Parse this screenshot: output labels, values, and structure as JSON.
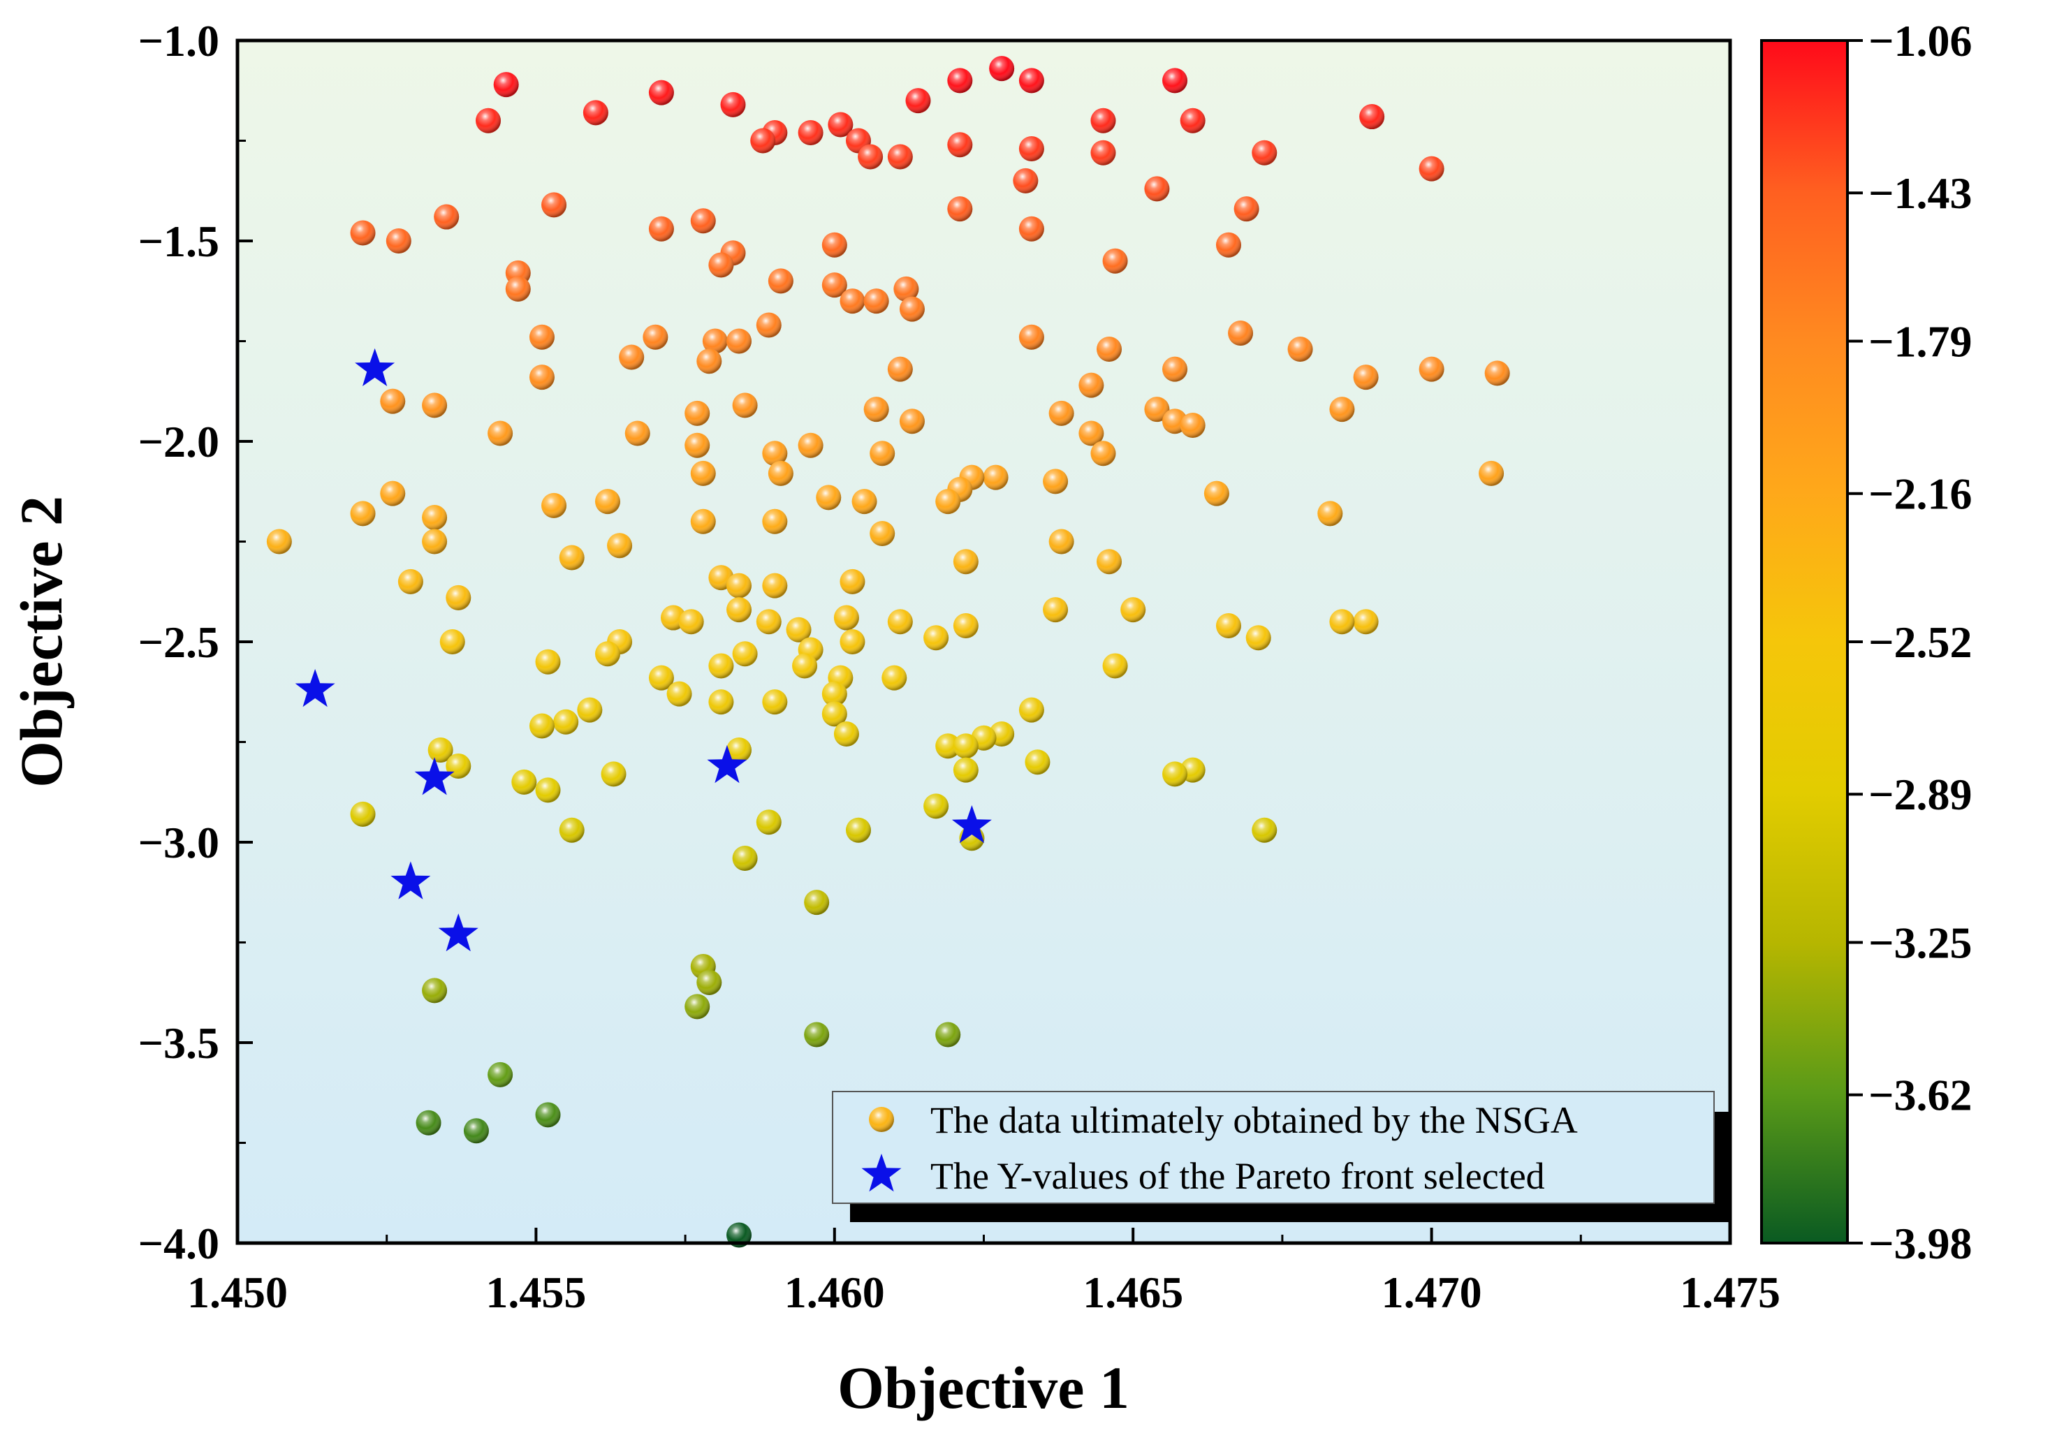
{
  "chart_data": {
    "type": "scatter",
    "title": "",
    "xlabel": "Objective 1",
    "ylabel": "Objective 2",
    "xlim": [
      1.45,
      1.475
    ],
    "ylim": [
      -4.0,
      -1.0
    ],
    "x_ticks": [
      "1.450",
      "1.455",
      "1.460",
      "1.465",
      "1.470",
      "1.475"
    ],
    "y_ticks": [
      "−1.0",
      "−1.5",
      "−2.0",
      "−2.5",
      "−3.0",
      "−3.5",
      "−4.0"
    ],
    "x_tick_values": [
      1.45,
      1.455,
      1.46,
      1.465,
      1.47,
      1.475
    ],
    "y_tick_values": [
      -1.0,
      -1.5,
      -2.0,
      -2.5,
      -3.0,
      -3.5,
      -4.0
    ],
    "colorbar": {
      "range": [
        -3.98,
        -1.06
      ],
      "ticks": [
        "−1.06",
        "−1.43",
        "−1.79",
        "−2.16",
        "−2.52",
        "−2.89",
        "−3.25",
        "−3.62",
        "−3.98"
      ],
      "tick_values": [
        -1.06,
        -1.43,
        -1.79,
        -2.16,
        -2.52,
        -2.89,
        -3.25,
        -3.62,
        -3.98
      ],
      "colors": [
        "#ff0a1a",
        "#ff5f20",
        "#ff8a20",
        "#ffa81a",
        "#f5c60a",
        "#e2cc00",
        "#b6b600",
        "#5a9a18",
        "#0a5a22"
      ]
    },
    "background_gradient": [
      "#eef7e8",
      "#d4ebf7"
    ],
    "legend": {
      "position": "bottom-right",
      "entries": [
        "The data ultimately obtained by the NSGA",
        "The Y-values of the Pareto front selected"
      ]
    },
    "series": [
      {
        "name": "The data ultimately obtained by the NSGA",
        "marker": "sphere",
        "color_by": "y",
        "points": [
          [
            1.4628,
            -1.07
          ],
          [
            1.4633,
            -1.1
          ],
          [
            1.4621,
            -1.1
          ],
          [
            1.4545,
            -1.11
          ],
          [
            1.4571,
            -1.13
          ],
          [
            1.4614,
            -1.15
          ],
          [
            1.4583,
            -1.16
          ],
          [
            1.456,
            -1.18
          ],
          [
            1.4657,
            -1.1
          ],
          [
            1.4542,
            -1.2
          ],
          [
            1.466,
            -1.2
          ],
          [
            1.469,
            -1.19
          ],
          [
            1.4601,
            -1.21
          ],
          [
            1.4645,
            -1.2
          ],
          [
            1.4596,
            -1.23
          ],
          [
            1.459,
            -1.23
          ],
          [
            1.4604,
            -1.25
          ],
          [
            1.4588,
            -1.25
          ],
          [
            1.4621,
            -1.26
          ],
          [
            1.4633,
            -1.27
          ],
          [
            1.4606,
            -1.29
          ],
          [
            1.4611,
            -1.29
          ],
          [
            1.4645,
            -1.28
          ],
          [
            1.4672,
            -1.28
          ],
          [
            1.47,
            -1.32
          ],
          [
            1.4632,
            -1.35
          ],
          [
            1.4654,
            -1.37
          ],
          [
            1.4553,
            -1.41
          ],
          [
            1.4621,
            -1.42
          ],
          [
            1.4669,
            -1.42
          ],
          [
            1.4535,
            -1.44
          ],
          [
            1.4578,
            -1.45
          ],
          [
            1.4633,
            -1.47
          ],
          [
            1.4571,
            -1.47
          ],
          [
            1.4521,
            -1.48
          ],
          [
            1.4527,
            -1.5
          ],
          [
            1.4666,
            -1.51
          ],
          [
            1.46,
            -1.51
          ],
          [
            1.4583,
            -1.53
          ],
          [
            1.4647,
            -1.55
          ],
          [
            1.4581,
            -1.56
          ],
          [
            1.4547,
            -1.58
          ],
          [
            1.4591,
            -1.6
          ],
          [
            1.46,
            -1.61
          ],
          [
            1.4612,
            -1.62
          ],
          [
            1.4547,
            -1.62
          ],
          [
            1.4603,
            -1.65
          ],
          [
            1.4607,
            -1.65
          ],
          [
            1.4613,
            -1.67
          ],
          [
            1.4589,
            -1.71
          ],
          [
            1.4668,
            -1.73
          ],
          [
            1.4633,
            -1.74
          ],
          [
            1.457,
            -1.74
          ],
          [
            1.4551,
            -1.74
          ],
          [
            1.458,
            -1.75
          ],
          [
            1.4584,
            -1.75
          ],
          [
            1.4646,
            -1.77
          ],
          [
            1.4678,
            -1.77
          ],
          [
            1.4566,
            -1.79
          ],
          [
            1.4579,
            -1.8
          ],
          [
            1.4611,
            -1.82
          ],
          [
            1.4657,
            -1.82
          ],
          [
            1.4711,
            -1.83
          ],
          [
            1.47,
            -1.82
          ],
          [
            1.4689,
            -1.84
          ],
          [
            1.4551,
            -1.84
          ],
          [
            1.4643,
            -1.86
          ],
          [
            1.4526,
            -1.9
          ],
          [
            1.4533,
            -1.91
          ],
          [
            1.4585,
            -1.91
          ],
          [
            1.4685,
            -1.92
          ],
          [
            1.4654,
            -1.92
          ],
          [
            1.4607,
            -1.92
          ],
          [
            1.4638,
            -1.93
          ],
          [
            1.4577,
            -1.93
          ],
          [
            1.4657,
            -1.95
          ],
          [
            1.4613,
            -1.95
          ],
          [
            1.466,
            -1.96
          ],
          [
            1.4544,
            -1.98
          ],
          [
            1.4567,
            -1.98
          ],
          [
            1.4643,
            -1.98
          ],
          [
            1.4577,
            -2.01
          ],
          [
            1.4596,
            -2.01
          ],
          [
            1.459,
            -2.03
          ],
          [
            1.4645,
            -2.03
          ],
          [
            1.4608,
            -2.03
          ],
          [
            1.4591,
            -2.08
          ],
          [
            1.4578,
            -2.08
          ],
          [
            1.4627,
            -2.09
          ],
          [
            1.4623,
            -2.09
          ],
          [
            1.4637,
            -2.1
          ],
          [
            1.471,
            -2.08
          ],
          [
            1.4621,
            -2.12
          ],
          [
            1.4664,
            -2.13
          ],
          [
            1.4526,
            -2.13
          ],
          [
            1.4619,
            -2.15
          ],
          [
            1.4599,
            -2.14
          ],
          [
            1.4605,
            -2.15
          ],
          [
            1.4562,
            -2.15
          ],
          [
            1.4553,
            -2.16
          ],
          [
            1.4521,
            -2.18
          ],
          [
            1.4533,
            -2.19
          ],
          [
            1.4683,
            -2.18
          ],
          [
            1.4578,
            -2.2
          ],
          [
            1.459,
            -2.2
          ],
          [
            1.4608,
            -2.23
          ],
          [
            1.4533,
            -2.25
          ],
          [
            1.4507,
            -2.25
          ],
          [
            1.4638,
            -2.25
          ],
          [
            1.4564,
            -2.26
          ],
          [
            1.4556,
            -2.29
          ],
          [
            1.4622,
            -2.3
          ],
          [
            1.4646,
            -2.3
          ],
          [
            1.4581,
            -2.34
          ],
          [
            1.4529,
            -2.35
          ],
          [
            1.4584,
            -2.36
          ],
          [
            1.459,
            -2.36
          ],
          [
            1.4603,
            -2.35
          ],
          [
            1.4537,
            -2.39
          ],
          [
            1.4584,
            -2.42
          ],
          [
            1.465,
            -2.42
          ],
          [
            1.4637,
            -2.42
          ],
          [
            1.4602,
            -2.44
          ],
          [
            1.4573,
            -2.44
          ],
          [
            1.4576,
            -2.45
          ],
          [
            1.4589,
            -2.45
          ],
          [
            1.4611,
            -2.45
          ],
          [
            1.4622,
            -2.46
          ],
          [
            1.4594,
            -2.47
          ],
          [
            1.4689,
            -2.45
          ],
          [
            1.4685,
            -2.45
          ],
          [
            1.4666,
            -2.46
          ],
          [
            1.4617,
            -2.49
          ],
          [
            1.4603,
            -2.5
          ],
          [
            1.4671,
            -2.49
          ],
          [
            1.4536,
            -2.5
          ],
          [
            1.4564,
            -2.5
          ],
          [
            1.4596,
            -2.52
          ],
          [
            1.4562,
            -2.53
          ],
          [
            1.4585,
            -2.53
          ],
          [
            1.4552,
            -2.55
          ],
          [
            1.4595,
            -2.56
          ],
          [
            1.4581,
            -2.56
          ],
          [
            1.4647,
            -2.56
          ],
          [
            1.4571,
            -2.59
          ],
          [
            1.4601,
            -2.59
          ],
          [
            1.461,
            -2.59
          ],
          [
            1.4574,
            -2.63
          ],
          [
            1.46,
            -2.63
          ],
          [
            1.4581,
            -2.65
          ],
          [
            1.459,
            -2.65
          ],
          [
            1.4559,
            -2.67
          ],
          [
            1.46,
            -2.68
          ],
          [
            1.4633,
            -2.67
          ],
          [
            1.4555,
            -2.7
          ],
          [
            1.4551,
            -2.71
          ],
          [
            1.4602,
            -2.73
          ],
          [
            1.4628,
            -2.73
          ],
          [
            1.4625,
            -2.74
          ],
          [
            1.4619,
            -2.76
          ],
          [
            1.4622,
            -2.76
          ],
          [
            1.4584,
            -2.77
          ],
          [
            1.4534,
            -2.77
          ],
          [
            1.4634,
            -2.8
          ],
          [
            1.4537,
            -2.81
          ],
          [
            1.4622,
            -2.82
          ],
          [
            1.466,
            -2.82
          ],
          [
            1.4657,
            -2.83
          ],
          [
            1.4563,
            -2.83
          ],
          [
            1.4548,
            -2.85
          ],
          [
            1.4552,
            -2.87
          ],
          [
            1.4617,
            -2.91
          ],
          [
            1.4521,
            -2.93
          ],
          [
            1.4589,
            -2.95
          ],
          [
            1.4556,
            -2.97
          ],
          [
            1.4604,
            -2.97
          ],
          [
            1.4672,
            -2.97
          ],
          [
            1.4623,
            -2.99
          ],
          [
            1.4585,
            -3.04
          ],
          [
            1.4597,
            -3.15
          ],
          [
            1.4578,
            -3.31
          ],
          [
            1.4579,
            -3.35
          ],
          [
            1.4533,
            -3.37
          ],
          [
            1.4577,
            -3.41
          ],
          [
            1.4597,
            -3.48
          ],
          [
            1.4619,
            -3.48
          ],
          [
            1.4544,
            -3.58
          ],
          [
            1.4552,
            -3.68
          ],
          [
            1.4532,
            -3.7
          ],
          [
            1.454,
            -3.72
          ],
          [
            1.4584,
            -3.98
          ]
        ]
      },
      {
        "name": "The Y-values of the Pareto front selected",
        "marker": "star",
        "color": "#0a10e8",
        "points": [
          [
            1.4523,
            -1.82
          ],
          [
            1.4513,
            -2.62
          ],
          [
            1.4533,
            -2.84
          ],
          [
            1.4582,
            -2.81
          ],
          [
            1.4623,
            -2.96
          ],
          [
            1.4529,
            -3.1
          ],
          [
            1.4537,
            -3.23
          ]
        ]
      }
    ]
  }
}
